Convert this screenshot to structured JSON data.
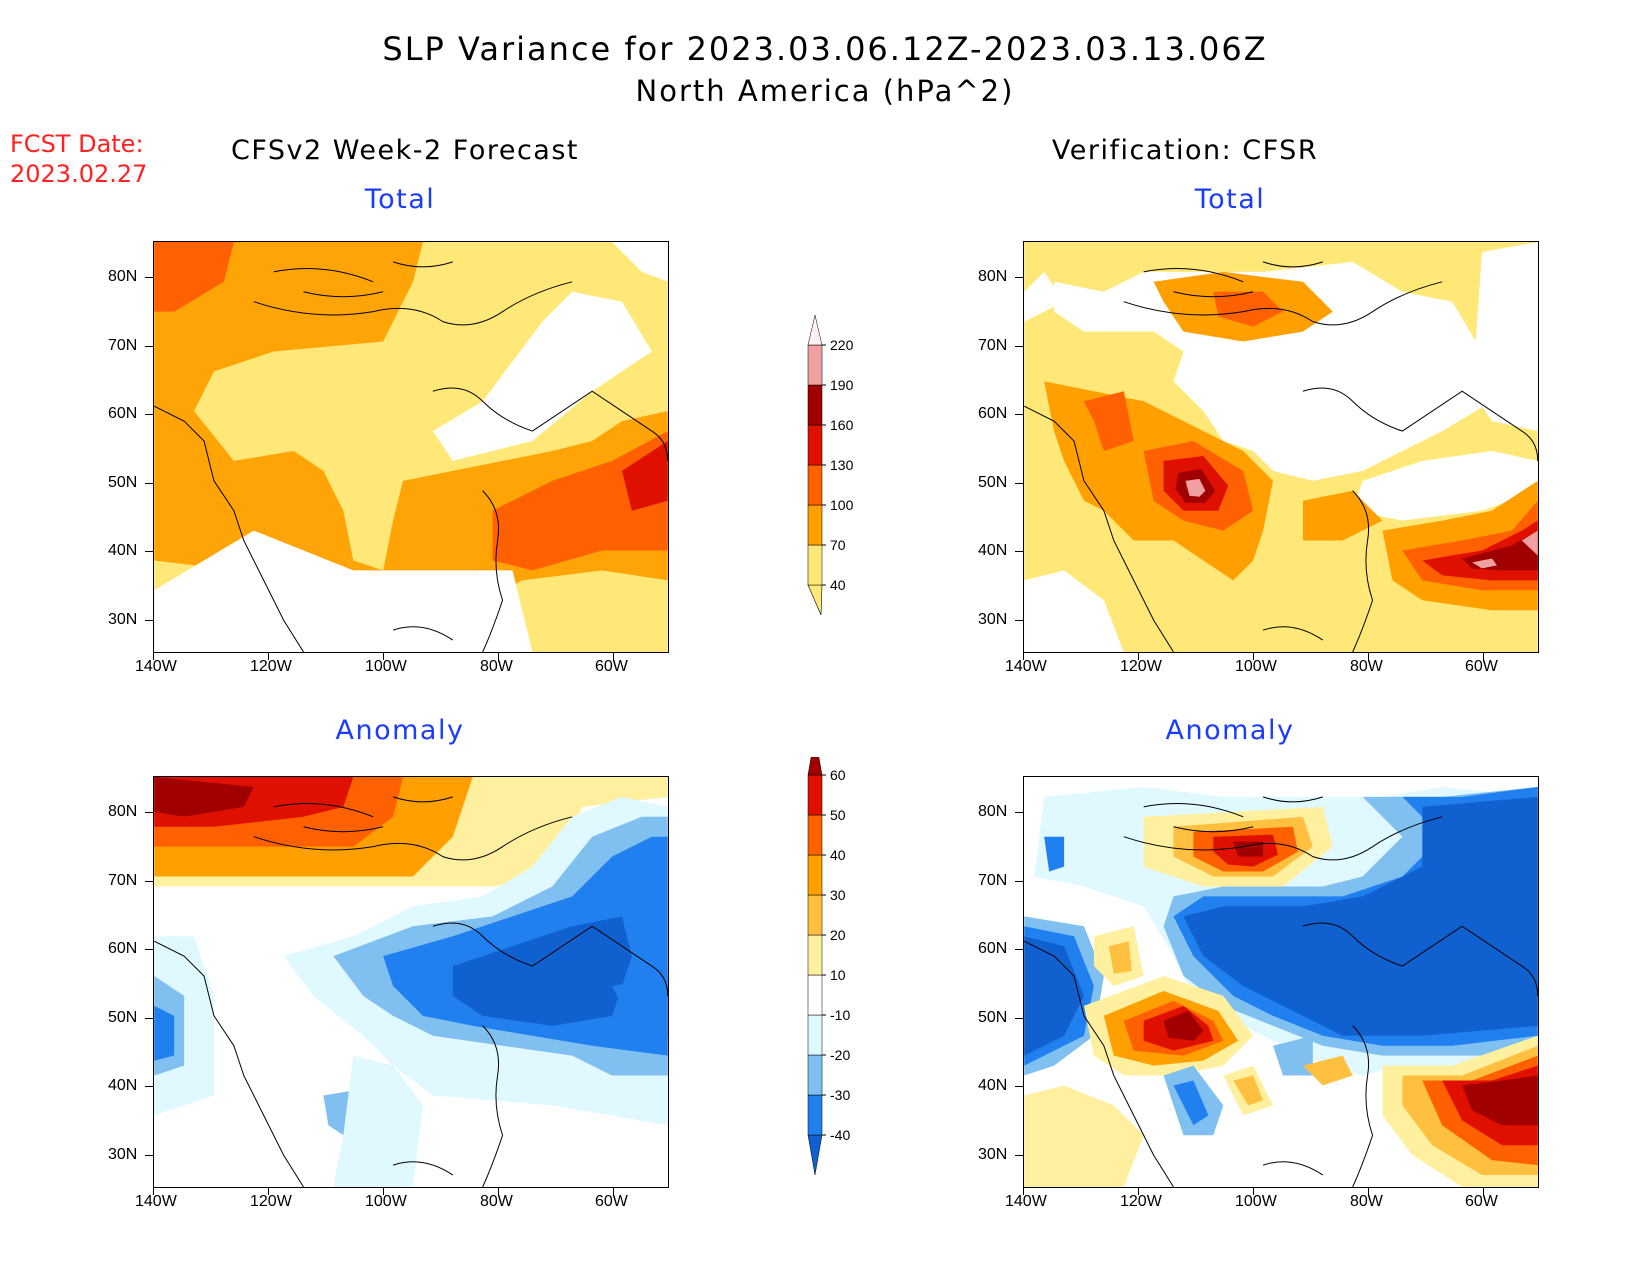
{
  "title": {
    "line1": "SLP Variance for 2023.03.06.12Z-2023.03.13.06Z",
    "line2": "North America (hPa^2)"
  },
  "fcst": {
    "label": "FCST Date:",
    "date": "2023.02.27"
  },
  "columns": {
    "left": "CFSv2 Week-2 Forecast",
    "right": "Verification: CFSR"
  },
  "panels": {
    "total": "Total",
    "anomaly": "Anomaly"
  },
  "axes": {
    "lat_labels": [
      "80N",
      "70N",
      "60N",
      "50N",
      "40N",
      "30N"
    ],
    "lon_labels": [
      "140W",
      "120W",
      "100W",
      "80W",
      "60W"
    ]
  },
  "colorbars": {
    "total": {
      "levels": [
        "40",
        "70",
        "100",
        "130",
        "160",
        "190",
        "220"
      ],
      "colors": [
        "#ffe878",
        "#ffa000",
        "#ff6000",
        "#e01000",
        "#a00000",
        "#f0a0a0",
        "#fff0f0"
      ]
    },
    "anomaly": {
      "levels": [
        "-40",
        "-30",
        "-20",
        "-10",
        "10",
        "20",
        "30",
        "40",
        "50",
        "60"
      ],
      "colors": [
        "#1060d0",
        "#2080f0",
        "#80c0f0",
        "#e0f8ff",
        "#ffffff",
        "#fff0a0",
        "#ffc040",
        "#ffa000",
        "#ff6000",
        "#e01000",
        "#a00000"
      ]
    }
  }
}
